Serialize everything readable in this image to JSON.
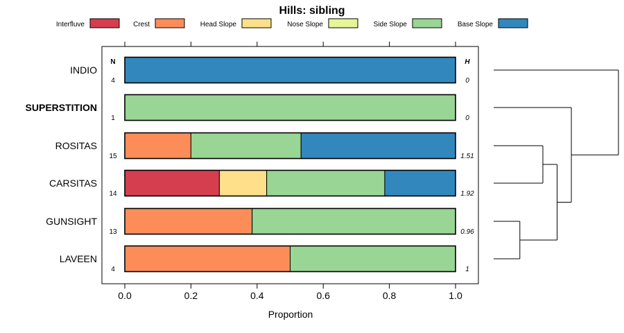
{
  "chart_data": {
    "type": "bar",
    "orientation": "horizontal-stacked",
    "title": "Hills: sibling",
    "xlabel": "Proportion",
    "ylabel": "",
    "xlim": [
      0,
      1
    ],
    "x_ticks": [
      "0.0",
      "0.2",
      "0.4",
      "0.6",
      "0.8",
      "1.0"
    ],
    "n_header": "N",
    "h_header": "H",
    "legend": [
      {
        "name": "Interfluve",
        "color": "#D53E4F"
      },
      {
        "name": "Crest",
        "color": "#FC8D59"
      },
      {
        "name": "Head Slope",
        "color": "#FEE08B"
      },
      {
        "name": "Nose Slope",
        "color": "#E6F598"
      },
      {
        "name": "Side Slope",
        "color": "#99D594"
      },
      {
        "name": "Base Slope",
        "color": "#3288BD"
      }
    ],
    "categories": [
      "INDIO",
      "SUPERSTITION",
      "ROSITAS",
      "CARSITAS",
      "GUNSIGHT",
      "LAVEEN"
    ],
    "highlighted_category": "SUPERSTITION",
    "n_values": [
      "4",
      "1",
      "15",
      "14",
      "13",
      "4"
    ],
    "h_values": [
      "0",
      "0",
      "1.51",
      "1.92",
      "0.96",
      "1"
    ],
    "series": [
      {
        "name": "Interfluve",
        "values": [
          0,
          0,
          0,
          0.286,
          0,
          0
        ]
      },
      {
        "name": "Crest",
        "values": [
          0,
          0,
          0.2,
          0,
          0.385,
          0.5
        ]
      },
      {
        "name": "Head Slope",
        "values": [
          0,
          0,
          0,
          0.143,
          0,
          0
        ]
      },
      {
        "name": "Nose Slope",
        "values": [
          0,
          0,
          0,
          0,
          0,
          0
        ]
      },
      {
        "name": "Side Slope",
        "values": [
          0,
          1,
          0.333,
          0.357,
          0.615,
          0.5
        ]
      },
      {
        "name": "Base Slope",
        "values": [
          1,
          0,
          0.467,
          0.214,
          0,
          0
        ]
      }
    ],
    "dendrogram": {
      "leaf_order": [
        "INDIO",
        "SUPERSTITION",
        "ROSITAS",
        "CARSITAS",
        "GUNSIGHT",
        "LAVEEN"
      ],
      "merges": [
        {
          "a": "GUNSIGHT",
          "b": "LAVEEN",
          "height": 0.1
        },
        {
          "a": "ROSITAS",
          "b": "CARSITAS",
          "height": 0.31
        },
        {
          "a": "m1",
          "b": "m0",
          "height": 0.44
        },
        {
          "a": "SUPERSTITION",
          "b": "m2",
          "height": 0.57
        },
        {
          "a": "INDIO",
          "b": "m3",
          "height": 1.0
        }
      ]
    }
  }
}
